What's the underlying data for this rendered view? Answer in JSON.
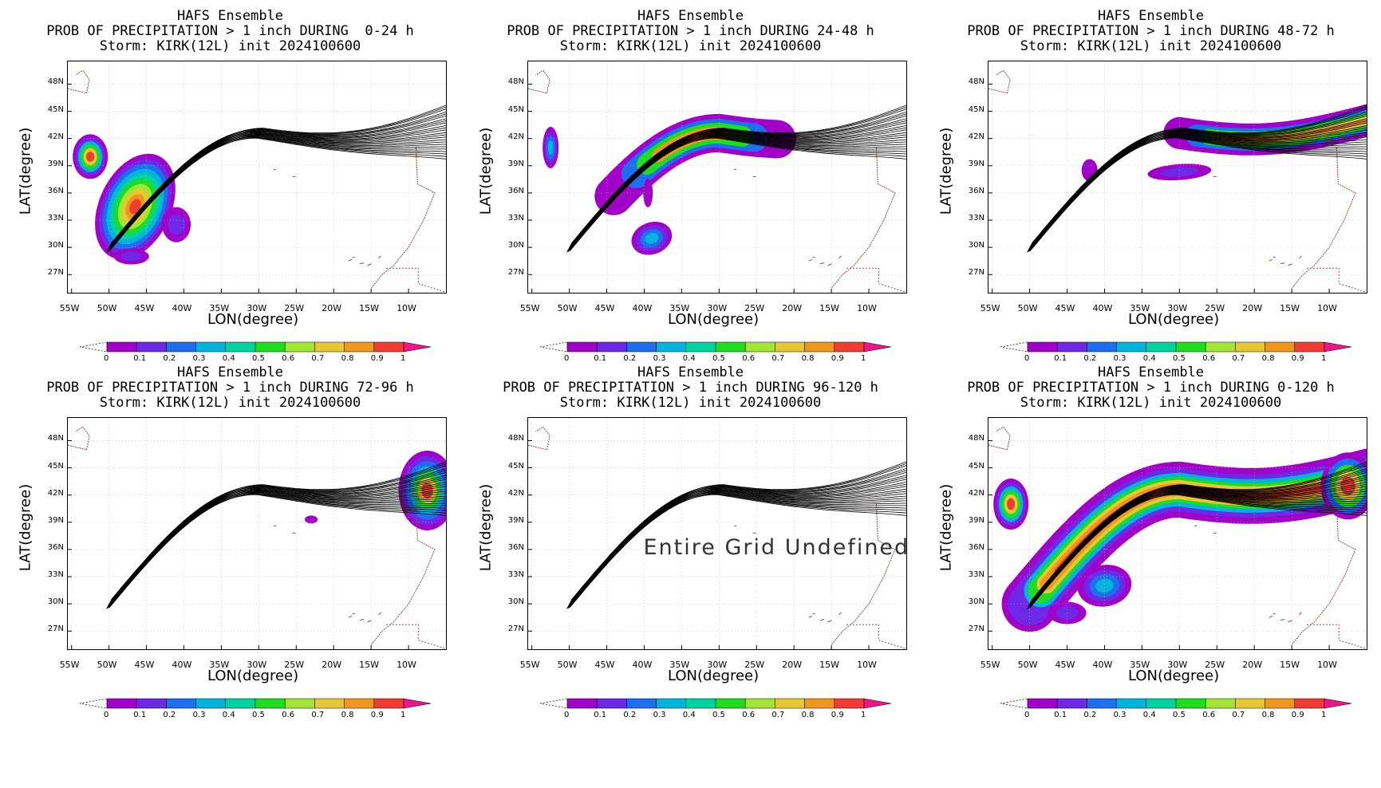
{
  "panels": [
    {
      "line1": "HAFS Ensemble",
      "line2": "PROB OF PRECIPITATION > 1 inch DURING  0-24 h",
      "line3": "Storm: KIRK(12L) init 2024100600"
    },
    {
      "line1": "HAFS Ensemble",
      "line2": "PROB OF PRECIPITATION > 1 inch DURING 24-48 h",
      "line3": "Storm: KIRK(12L) init 2024100600"
    },
    {
      "line1": "HAFS Ensemble",
      "line2": "PROB OF PRECIPITATION > 1 inch DURING 48-72 h",
      "line3": "Storm: KIRK(12L) init 2024100600"
    },
    {
      "line1": "HAFS Ensemble",
      "line2": "PROB OF PRECIPITATION > 1 inch DURING 72-96 h",
      "line3": "Storm: KIRK(12L) init 2024100600"
    },
    {
      "line1": "HAFS Ensemble",
      "line2": "PROB OF PRECIPITATION > 1 inch DURING 96-120 h",
      "line3": "Storm: KIRK(12L) init 2024100600",
      "note": "Entire Grid Undefined"
    },
    {
      "line1": "HAFS Ensemble",
      "line2": "PROB OF PRECIPITATION > 1 inch DURING 0-120 h",
      "line3": "Storm: KIRK(12L) init 2024100600"
    }
  ],
  "axes": {
    "xlabel": "LON(degree)",
    "ylabel": "LAT(degree)",
    "xticks": [
      "55W",
      "50W",
      "45W",
      "40W",
      "35W",
      "30W",
      "25W",
      "20W",
      "15W",
      "10W"
    ],
    "yticks": [
      "48N",
      "45N",
      "42N",
      "39N",
      "36N",
      "33N",
      "30N",
      "27N"
    ]
  },
  "colorbar": {
    "labels": [
      "0",
      "0.1",
      "0.2",
      "0.3",
      "0.4",
      "0.5",
      "0.6",
      "0.7",
      "0.8",
      "0.9",
      "1"
    ],
    "colors": [
      "#a000c8",
      "#6e28e6",
      "#1e6ef0",
      "#00b4dc",
      "#00d2a0",
      "#1edc1e",
      "#a0e632",
      "#e6c832",
      "#f0961e",
      "#f03c32",
      "#f0148c"
    ]
  }
}
